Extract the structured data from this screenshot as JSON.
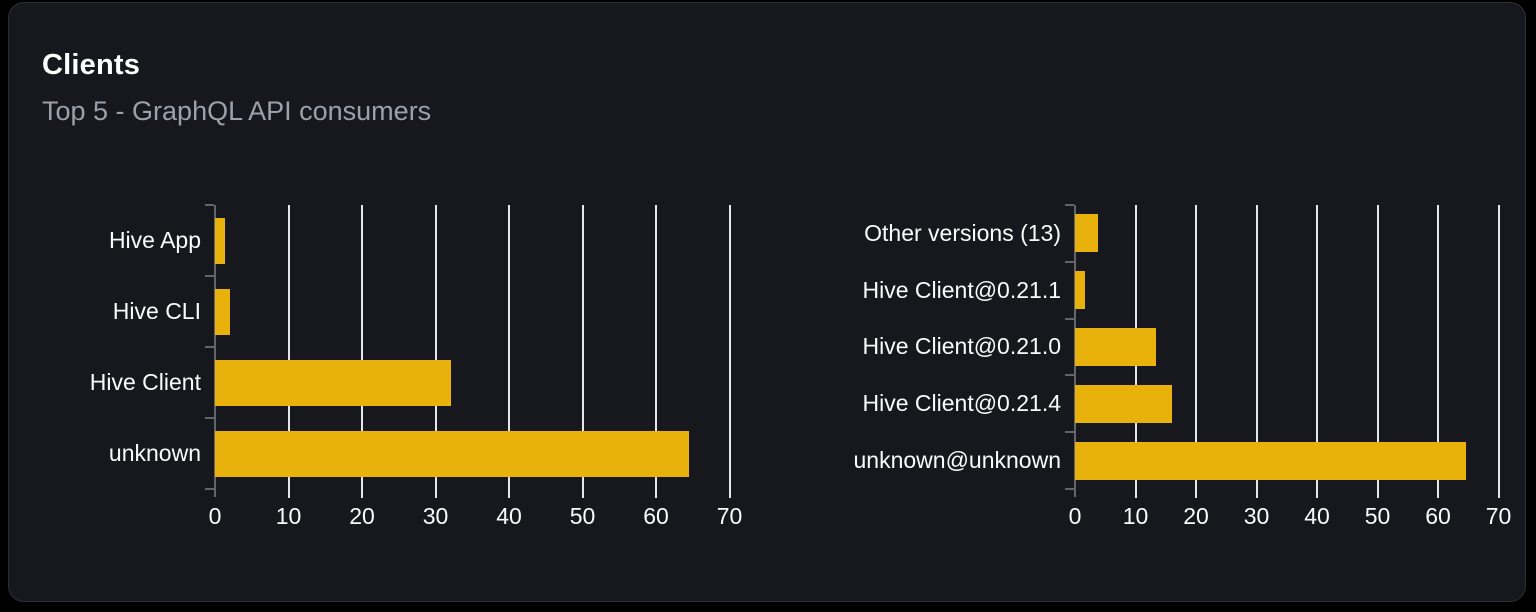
{
  "header": {
    "title": "Clients",
    "subtitle": "Top 5 - GraphQL API consumers"
  },
  "colors": {
    "page_background": "#000000",
    "card_background": "#16181d",
    "card_border": "#2c2f36",
    "bar_fill": "#e8b10b",
    "gridline": "#e3e6ea",
    "axis_line": "#62656c",
    "tick_text": "#fafafa",
    "subtitle_text": "#9ba1ab"
  },
  "chart_data": [
    {
      "type": "bar",
      "orientation": "horizontal",
      "title": "clients by name",
      "categories": [
        "Hive App",
        "Hive CLI",
        "Hive Client",
        "unknown"
      ],
      "values": [
        1.3,
        2.1,
        32.1,
        64.5
      ],
      "xticks": [
        0,
        10,
        20,
        30,
        40,
        50,
        60,
        70
      ],
      "xlim": [
        0,
        72
      ],
      "grid": true,
      "legend": false,
      "xlabel": "",
      "ylabel": ""
    },
    {
      "type": "bar",
      "orientation": "horizontal",
      "title": "clients by name@version",
      "categories": [
        "Other versions (13)",
        "Hive Client@0.21.1",
        "Hive Client@0.21.0",
        "Hive Client@0.21.4",
        "unknown@unknown"
      ],
      "values": [
        3.8,
        1.7,
        13.4,
        16.1,
        64.7
      ],
      "xticks": [
        0,
        10,
        20,
        30,
        40,
        50,
        60,
        70
      ],
      "xlim": [
        0,
        72
      ],
      "grid": true,
      "legend": false,
      "xlabel": "",
      "ylabel": ""
    }
  ]
}
